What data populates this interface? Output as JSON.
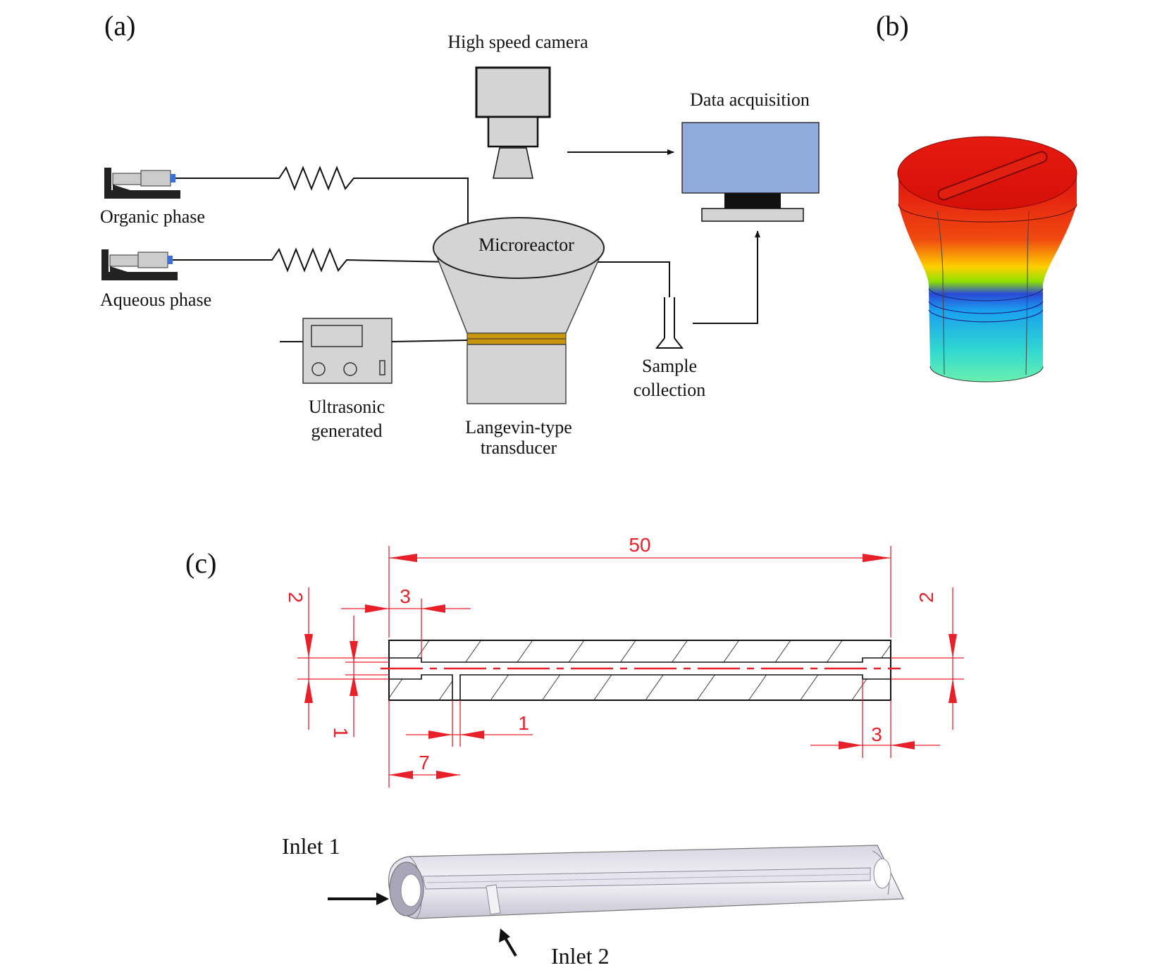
{
  "panels": {
    "a": "(a)",
    "b": "(b)",
    "c": "(c)"
  },
  "labels": {
    "camera": "High speed camera",
    "data_acquisition": "Data acquisition",
    "organic_phase": "Organic phase",
    "aqueous_phase": "Aqueous phase",
    "microreactor": "Microreactor",
    "sample_collection_1": "Sample",
    "sample_collection_2": "collection",
    "ultrasonic_1": "Ultrasonic",
    "ultrasonic_2": "generated",
    "transducer_1": "Langevin-type",
    "transducer_2": "transducer"
  },
  "dimensions": {
    "total_length": "50",
    "left_depth": "3",
    "right_depth": "3",
    "left_diameter": "2",
    "right_diameter": "2",
    "inlet_width": "1",
    "channel_height": "1",
    "inlet_position": "7"
  },
  "inlets": {
    "inlet1": "Inlet 1",
    "inlet2": "Inlet 2"
  },
  "colors": {
    "dimension_red": "#e8202a",
    "monitor_blue": "#8faadc",
    "band_gold": "#c8960c",
    "gray_fill": "#d4d4d4"
  }
}
